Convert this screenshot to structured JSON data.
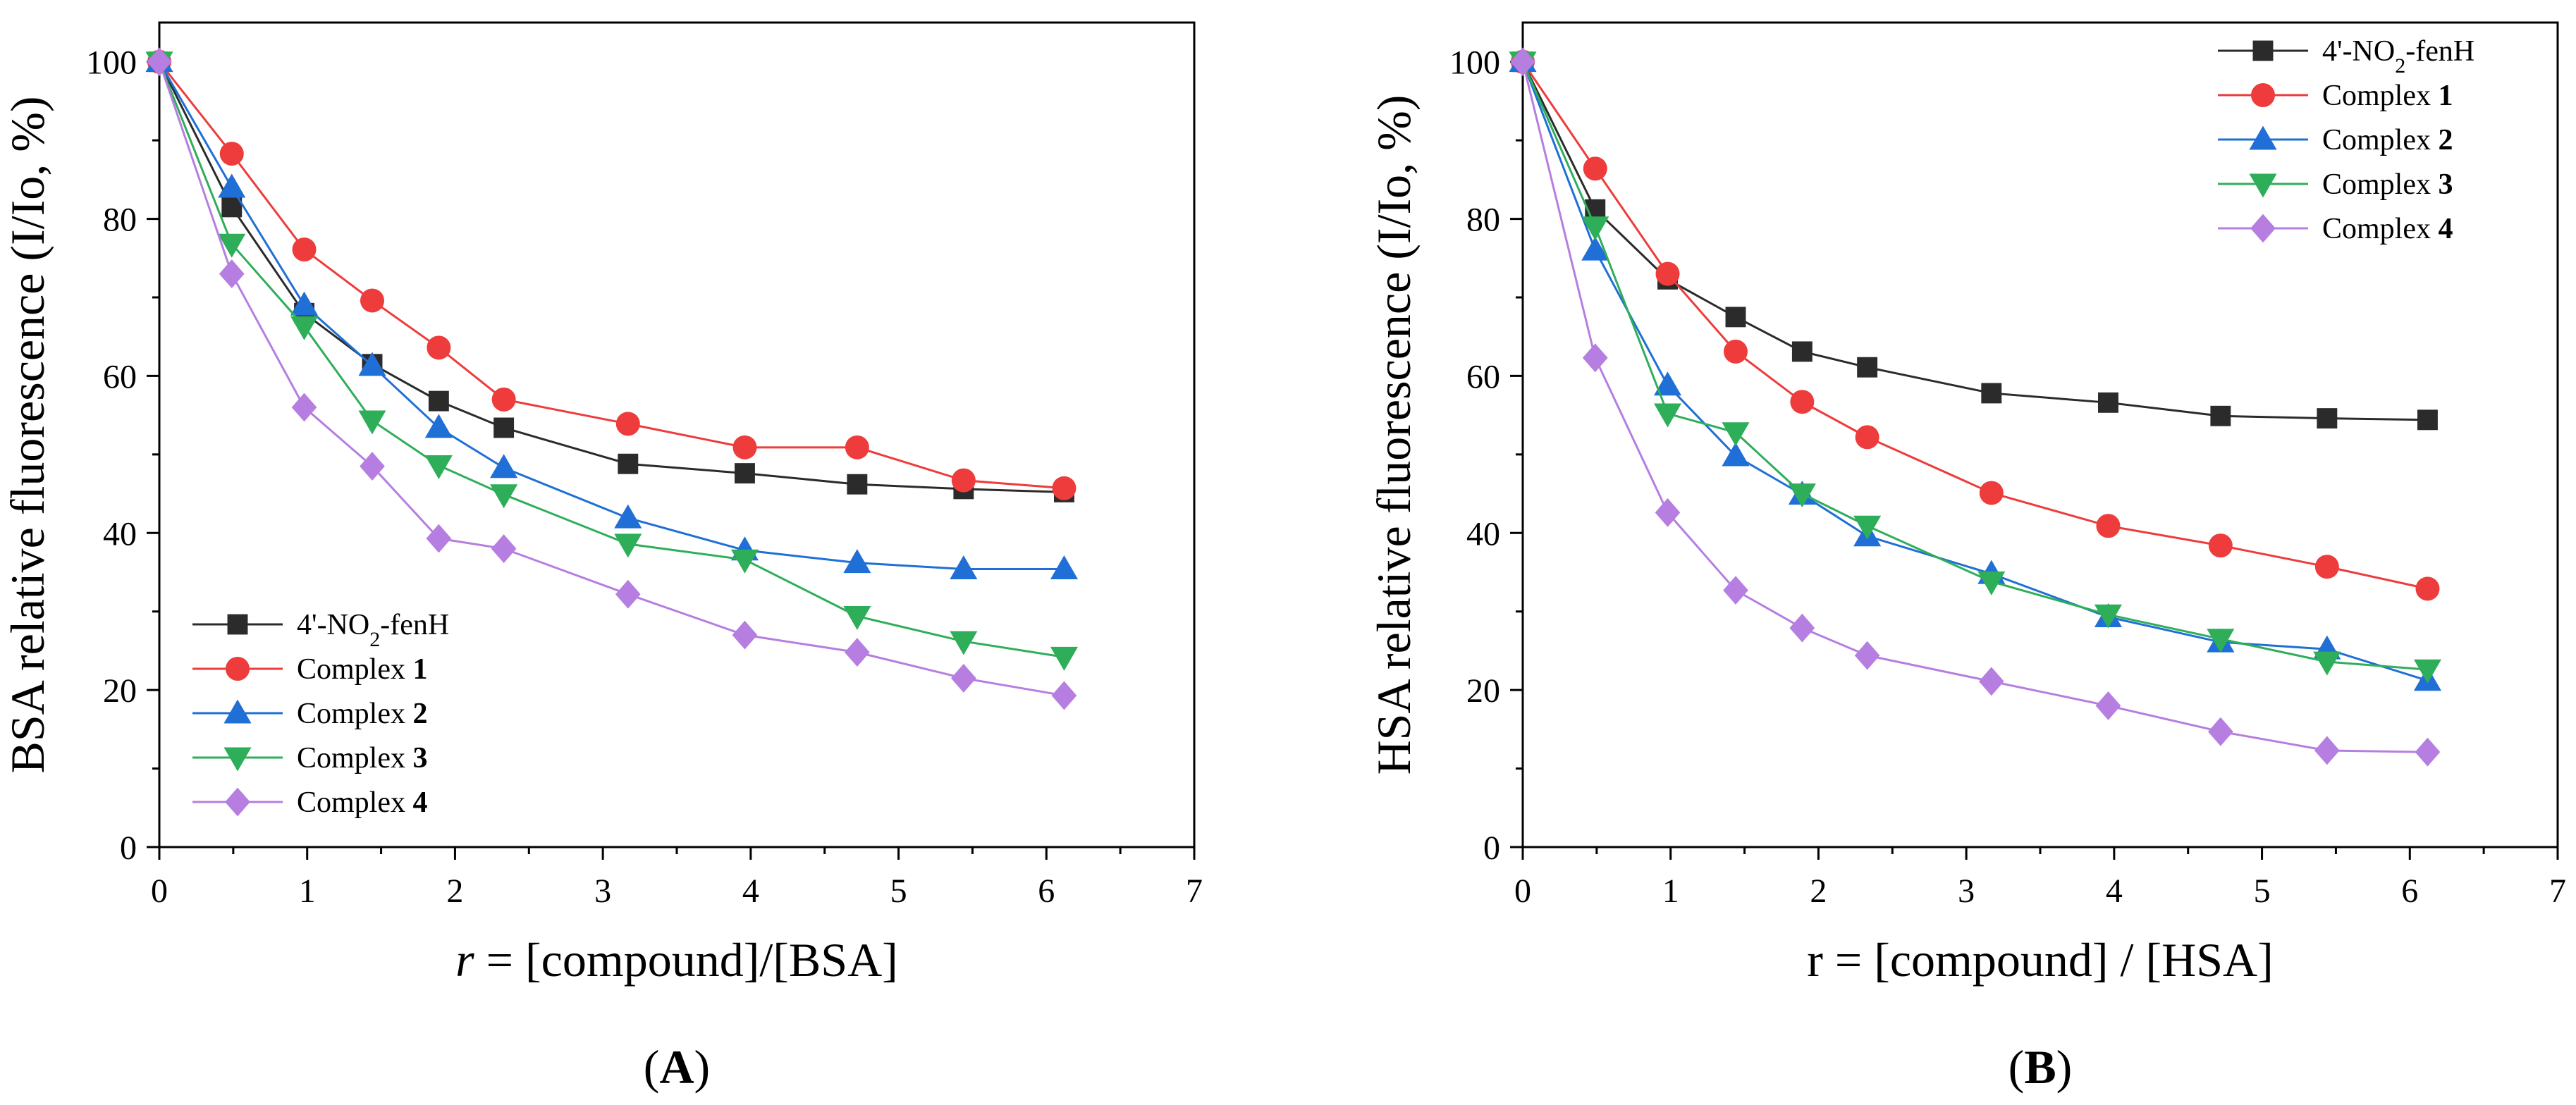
{
  "chart_data": [
    {
      "type": "line",
      "panel_label": "A",
      "xlabel_italic": "r",
      "xlabel_rest": " = [compound]/[BSA]",
      "ylabel": "BSA relative fluorescence (I/Io, %)",
      "xlim": [
        0,
        7
      ],
      "ylim": [
        0,
        105
      ],
      "x_ticks": [
        "0",
        "1",
        "2",
        "3",
        "4",
        "5",
        "6",
        "7"
      ],
      "y_ticks": [
        "0",
        "20",
        "40",
        "60",
        "80",
        "100"
      ],
      "legend_position": "bottom-left",
      "x": [
        0,
        0.49,
        0.98,
        1.44,
        1.89,
        2.33,
        3.17,
        3.96,
        4.72,
        5.44,
        6.12
      ],
      "series": [
        {
          "label_main": "4'-NO",
          "label_sub": "2",
          "label_tail": "-fenH",
          "label_bold": "",
          "color": "#2b2b2b",
          "marker": "square",
          "values": [
            100,
            81.5,
            68,
            61.5,
            56.8,
            53.4,
            48.8,
            47.6,
            46.2,
            45.6,
            45.2
          ]
        },
        {
          "label_main": "Complex ",
          "label_sub": "",
          "label_tail": "",
          "label_bold": "1",
          "color": "#ee3b3b",
          "marker": "circle",
          "values": [
            100,
            88.3,
            76.1,
            69.6,
            63.6,
            57,
            53.9,
            50.9,
            50.9,
            46.7,
            45.7
          ]
        },
        {
          "label_main": "Complex ",
          "label_sub": "",
          "label_tail": "",
          "label_bold": "2",
          "color": "#1f6fd6",
          "marker": "triangle-up",
          "values": [
            100,
            84,
            69,
            61.3,
            53.4,
            48.3,
            41.9,
            37.8,
            36.2,
            35.4,
            35.4
          ]
        },
        {
          "label_main": "Complex ",
          "label_sub": "",
          "label_tail": "",
          "label_bold": "3",
          "color": "#2fae5a",
          "marker": "triangle-down",
          "values": [
            100,
            76.8,
            66.3,
            54.3,
            48.6,
            44.9,
            38.6,
            36.6,
            29.4,
            26.2,
            24.2
          ]
        },
        {
          "label_main": "Complex ",
          "label_sub": "",
          "label_tail": "",
          "label_bold": "4",
          "color": "#b57ee0",
          "marker": "diamond",
          "values": [
            100,
            73,
            56,
            48.5,
            39.3,
            38,
            32.2,
            27,
            24.8,
            21.5,
            19.3
          ]
        }
      ]
    },
    {
      "type": "line",
      "panel_label": "B",
      "xlabel_italic": "",
      "xlabel_rest": "r = [compound] / [HSA]",
      "ylabel": "HSA relative fluorescence (I/Io, %)",
      "xlim": [
        0,
        7
      ],
      "ylim": [
        0,
        105
      ],
      "x_ticks": [
        "0",
        "1",
        "2",
        "3",
        "4",
        "5",
        "6",
        "7"
      ],
      "y_ticks": [
        "0",
        "20",
        "40",
        "60",
        "80",
        "100"
      ],
      "legend_position": "top-right",
      "x": [
        0,
        0.49,
        0.98,
        1.44,
        1.89,
        2.33,
        3.17,
        3.96,
        4.72,
        5.44,
        6.12
      ],
      "series": [
        {
          "label_main": "4'-NO",
          "label_sub": "2",
          "label_tail": "-fenH",
          "label_bold": "",
          "color": "#2b2b2b",
          "marker": "square",
          "values": [
            100,
            81.2,
            72.3,
            67.5,
            63.1,
            61.1,
            57.8,
            56.6,
            54.9,
            54.6,
            54.4
          ]
        },
        {
          "label_main": "Complex ",
          "label_sub": "",
          "label_tail": "",
          "label_bold": "1",
          "color": "#ee3b3b",
          "marker": "circle",
          "values": [
            100,
            86.4,
            73,
            63.1,
            56.7,
            52.2,
            45.1,
            40.9,
            38.4,
            35.7,
            32.9
          ]
        },
        {
          "label_main": "Complex ",
          "label_sub": "",
          "label_tail": "",
          "label_bold": "2",
          "color": "#1f6fd6",
          "marker": "triangle-up",
          "values": [
            100,
            76,
            58.8,
            49.8,
            44.9,
            39.6,
            34.8,
            29.3,
            26.1,
            25.2,
            21.2
          ]
        },
        {
          "label_main": "Complex ",
          "label_sub": "",
          "label_tail": "",
          "label_bold": "3",
          "color": "#2fae5a",
          "marker": "triangle-down",
          "values": [
            100,
            79,
            55.2,
            52.8,
            45,
            40.9,
            33.8,
            29.6,
            26.5,
            23.6,
            22.6
          ]
        },
        {
          "label_main": "Complex ",
          "label_sub": "",
          "label_tail": "",
          "label_bold": "4",
          "color": "#b57ee0",
          "marker": "diamond",
          "values": [
            100,
            62.3,
            42.6,
            32.7,
            27.9,
            24.4,
            21.1,
            18,
            14.7,
            12.3,
            12.1
          ]
        }
      ]
    }
  ]
}
